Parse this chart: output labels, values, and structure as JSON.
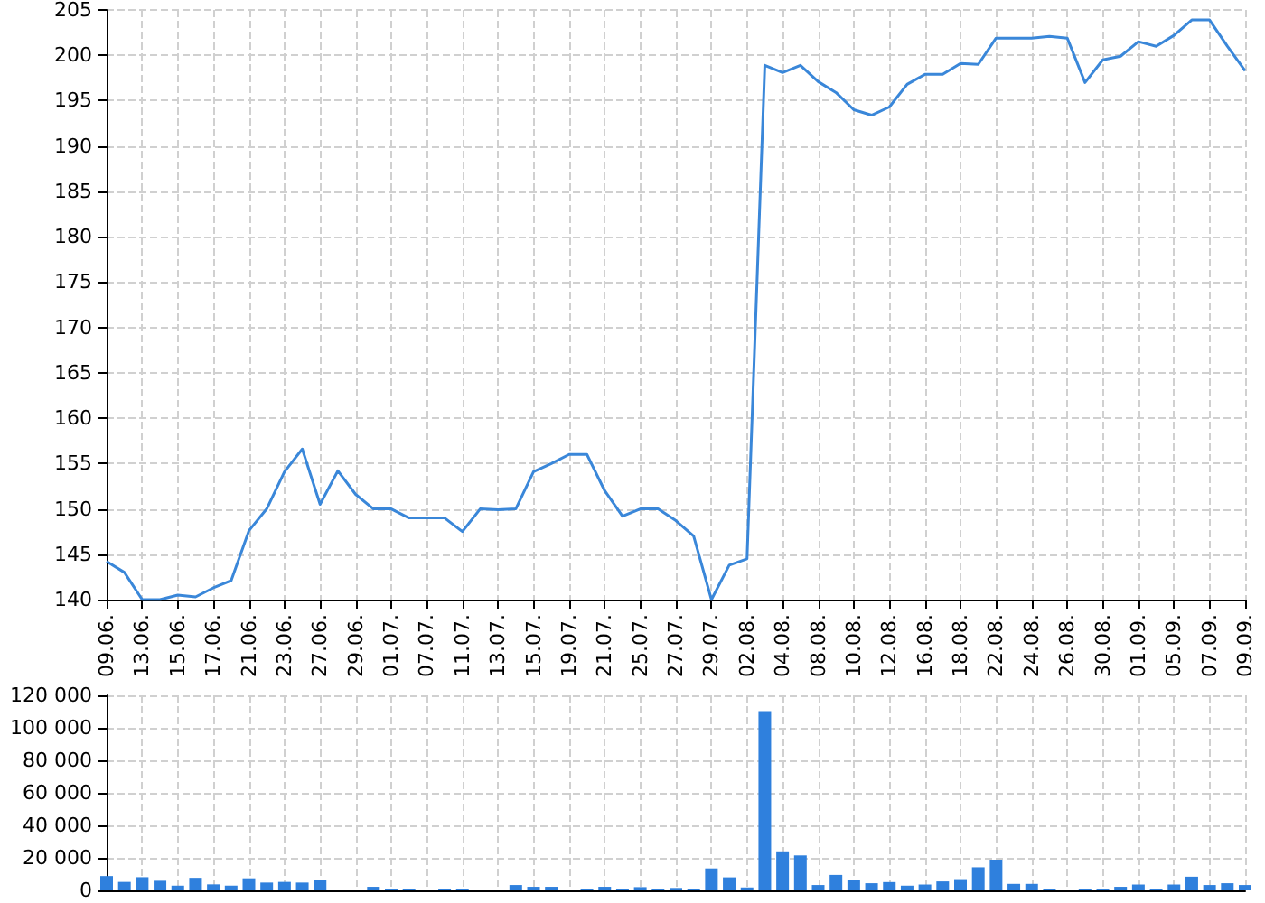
{
  "chart_data": [
    {
      "type": "line",
      "categories": [
        "09.06.",
        null,
        "13.06.",
        null,
        "15.06.",
        null,
        "17.06.",
        null,
        "21.06.",
        null,
        "23.06.",
        null,
        "27.06.",
        null,
        "29.06.",
        null,
        "01.07.",
        null,
        "07.07.",
        null,
        "11.07.",
        null,
        "13.07.",
        null,
        "15.07.",
        null,
        "19.07.",
        null,
        "21.07.",
        null,
        "25.07.",
        null,
        "27.07.",
        null,
        "29.07.",
        null,
        "02.08.",
        null,
        "04.08.",
        null,
        "08.08.",
        null,
        "10.08.",
        null,
        "12.08.",
        null,
        "16.08.",
        null,
        "18.08.",
        null,
        "22.08.",
        null,
        "24.08.",
        null,
        "26.08.",
        null,
        "30.08.",
        null,
        "01.09.",
        null,
        "05.09.",
        null,
        "07.09.",
        null,
        "09.09."
      ],
      "series": [
        {
          "color": "#3a87d9",
          "values": [
            144.2,
            143.0,
            140.0,
            140.0,
            140.5,
            140.3,
            141.3,
            142.1,
            147.6,
            150.0,
            154.1,
            156.6,
            150.5,
            154.2,
            151.6,
            150.0,
            150.0,
            149.0,
            149.0,
            149.0,
            147.5,
            150.0,
            149.9,
            150.0,
            154.1,
            155.0,
            156.0,
            156.0,
            152.0,
            149.2,
            150.0,
            150.0,
            148.7,
            147.0,
            140.0,
            143.8,
            144.5,
            198.9,
            198.1,
            198.9,
            197.1,
            195.9,
            194.0,
            193.4,
            194.3,
            196.8,
            197.9,
            197.9,
            199.1,
            199.0,
            201.9,
            201.9,
            201.9,
            202.1,
            201.9,
            197.0,
            199.5,
            199.9,
            201.5,
            201.0,
            202.2,
            203.9,
            203.9,
            201.0,
            198.3
          ]
        }
      ],
      "ylim": [
        140,
        205
      ],
      "yticks": [
        140,
        145,
        150,
        155,
        160,
        165,
        170,
        175,
        180,
        185,
        190,
        195,
        200,
        205
      ],
      "grid": true,
      "marker": "none",
      "line_style": "solid"
    },
    {
      "type": "bar",
      "categories": [
        "09.06.",
        null,
        "13.06.",
        null,
        "15.06.",
        null,
        "17.06.",
        null,
        "21.06.",
        null,
        "23.06.",
        null,
        "27.06.",
        null,
        "29.06.",
        null,
        "01.07.",
        null,
        "07.07.",
        null,
        "11.07.",
        null,
        "13.07.",
        null,
        "15.07.",
        null,
        "19.07.",
        null,
        "21.07.",
        null,
        "25.07.",
        null,
        "27.07.",
        null,
        "29.07.",
        null,
        "02.08.",
        null,
        "04.08.",
        null,
        "08.08.",
        null,
        "10.08.",
        null,
        "12.08.",
        null,
        "16.08.",
        null,
        "18.08.",
        null,
        "22.08.",
        null,
        "24.08.",
        null,
        "26.08.",
        null,
        "30.08.",
        null,
        "01.09.",
        null,
        "05.09.",
        null,
        "07.09.",
        null,
        "09.09."
      ],
      "series": [
        {
          "color": "#2f80dd",
          "values": [
            8800,
            5200,
            8100,
            5900,
            2900,
            7700,
            3700,
            2900,
            7400,
            4800,
            5200,
            4800,
            6600,
            0,
            0,
            2200,
            700,
            700,
            0,
            1100,
            1100,
            0,
            0,
            3300,
            2200,
            2200,
            0,
            700,
            2200,
            1100,
            2000,
            700,
            1500,
            700,
            13500,
            8000,
            1800,
            110300,
            24000,
            21500,
            3300,
            9500,
            6600,
            4400,
            5100,
            2900,
            3600,
            5500,
            6900,
            14200,
            18900,
            4000,
            4000,
            1100,
            0,
            1100,
            1100,
            2200,
            3600,
            1100,
            3600,
            8400,
            3300,
            4400,
            3300
          ]
        }
      ],
      "ylim": [
        0,
        120000
      ],
      "yticks": [
        0,
        {
          "value": 20000,
          "label": "20 000"
        },
        {
          "value": 40000,
          "label": "40 000"
        },
        {
          "value": 60000,
          "label": "60 000"
        },
        {
          "value": 80000,
          "label": "80 000"
        },
        {
          "value": 100000,
          "label": "100 000"
        },
        {
          "value": 120000,
          "label": "120 000"
        }
      ],
      "grid": true,
      "tick_labels": "y"
    }
  ]
}
